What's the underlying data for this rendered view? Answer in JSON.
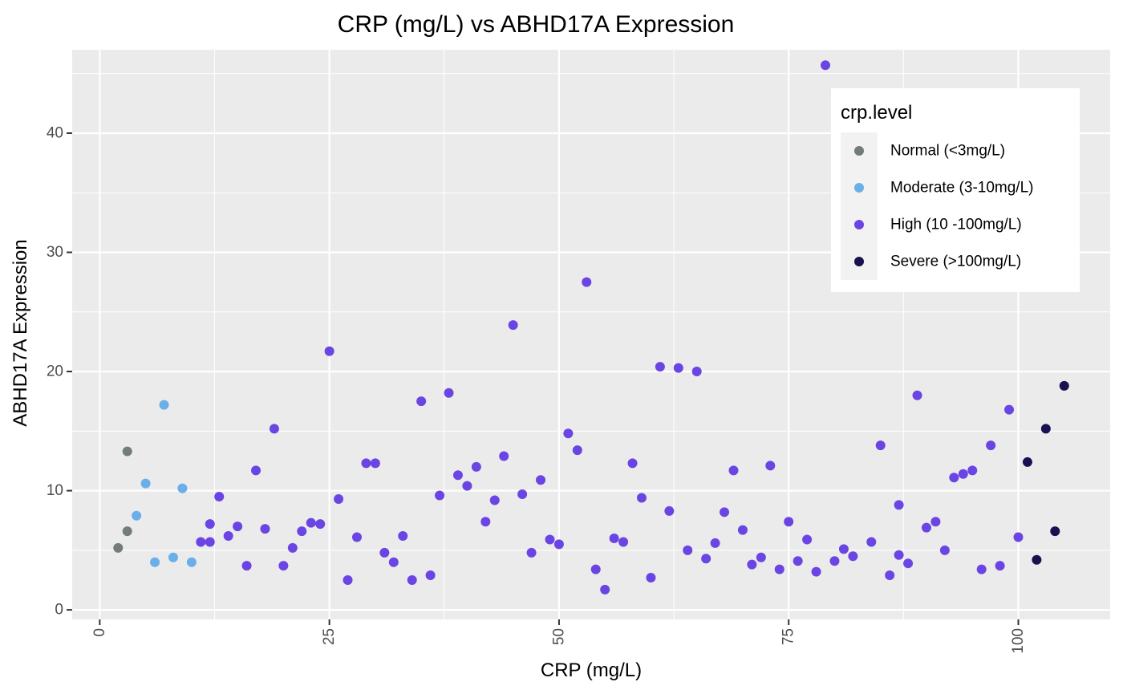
{
  "chart_data": {
    "type": "scatter",
    "title": "CRP (mg/L)  vs  ABHD17A  Expression",
    "xlabel": "CRP (mg/L)",
    "ylabel": "ABHD17A  Expression",
    "xlim": [
      -3,
      110
    ],
    "ylim": [
      -0.8,
      47
    ],
    "xticks": [
      0,
      25,
      50,
      75,
      100
    ],
    "xtick_labels": [
      "0",
      "25",
      "50",
      "75",
      "100"
    ],
    "yticks": [
      0,
      10,
      20,
      30,
      40
    ],
    "ytick_labels": [
      "0",
      "10",
      "20",
      "30",
      "40"
    ],
    "grid": true,
    "legend": {
      "title": "crp.level",
      "position": "top-right"
    },
    "series": [
      {
        "name": "Normal (<3mg/L)",
        "color": "#737b7b",
        "points": [
          [
            2,
            5.2
          ],
          [
            3,
            6.6
          ],
          [
            3,
            13.3
          ]
        ]
      },
      {
        "name": "Moderate (3-10mg/L)",
        "color": "#6aafe9",
        "points": [
          [
            4,
            7.9
          ],
          [
            5,
            10.6
          ],
          [
            6,
            4.0
          ],
          [
            7,
            17.2
          ],
          [
            8,
            4.4
          ],
          [
            9,
            10.2
          ],
          [
            10,
            4.0
          ]
        ]
      },
      {
        "name": "High (10 -100mg/L)",
        "color": "#6a45e4",
        "points": [
          [
            11,
            5.7
          ],
          [
            12,
            7.2
          ],
          [
            12,
            5.7
          ],
          [
            13,
            9.5
          ],
          [
            14,
            6.2
          ],
          [
            15,
            7.0
          ],
          [
            16,
            3.7
          ],
          [
            17,
            11.7
          ],
          [
            18,
            6.8
          ],
          [
            19,
            15.2
          ],
          [
            20,
            3.7
          ],
          [
            21,
            5.2
          ],
          [
            22,
            6.6
          ],
          [
            23,
            7.3
          ],
          [
            24,
            7.2
          ],
          [
            25,
            21.7
          ],
          [
            26,
            9.3
          ],
          [
            27,
            2.5
          ],
          [
            28,
            6.1
          ],
          [
            29,
            12.3
          ],
          [
            30,
            12.3
          ],
          [
            31,
            4.8
          ],
          [
            32,
            4.0
          ],
          [
            33,
            6.2
          ],
          [
            34,
            2.5
          ],
          [
            35,
            17.5
          ],
          [
            36,
            2.9
          ],
          [
            37,
            9.6
          ],
          [
            38,
            18.2
          ],
          [
            39,
            11.3
          ],
          [
            40,
            10.4
          ],
          [
            41,
            12.0
          ],
          [
            42,
            7.4
          ],
          [
            43,
            9.2
          ],
          [
            44,
            12.9
          ],
          [
            45,
            23.9
          ],
          [
            46,
            9.7
          ],
          [
            47,
            4.8
          ],
          [
            48,
            10.9
          ],
          [
            49,
            5.9
          ],
          [
            50,
            5.5
          ],
          [
            51,
            14.8
          ],
          [
            52,
            13.4
          ],
          [
            53,
            27.5
          ],
          [
            54,
            3.4
          ],
          [
            55,
            1.7
          ],
          [
            56,
            6.0
          ],
          [
            57,
            5.7
          ],
          [
            58,
            12.3
          ],
          [
            59,
            9.4
          ],
          [
            60,
            2.7
          ],
          [
            61,
            20.4
          ],
          [
            62,
            8.3
          ],
          [
            63,
            20.3
          ],
          [
            64,
            5.0
          ],
          [
            65,
            20.0
          ],
          [
            66,
            4.3
          ],
          [
            67,
            5.6
          ],
          [
            68,
            8.2
          ],
          [
            69,
            11.7
          ],
          [
            70,
            6.7
          ],
          [
            71,
            3.8
          ],
          [
            72,
            4.4
          ],
          [
            73,
            12.1
          ],
          [
            74,
            3.4
          ],
          [
            75,
            7.4
          ],
          [
            76,
            4.1
          ],
          [
            77,
            5.9
          ],
          [
            78,
            3.2
          ],
          [
            79,
            45.7
          ],
          [
            80,
            4.1
          ],
          [
            81,
            5.1
          ],
          [
            82,
            4.5
          ],
          [
            84,
            5.7
          ],
          [
            85,
            13.8
          ],
          [
            86,
            2.9
          ],
          [
            87,
            4.6
          ],
          [
            87,
            8.8
          ],
          [
            88,
            3.9
          ],
          [
            89,
            18.0
          ],
          [
            90,
            6.9
          ],
          [
            91,
            7.4
          ],
          [
            92,
            5.0
          ],
          [
            93,
            11.1
          ],
          [
            94,
            11.4
          ],
          [
            95,
            11.7
          ],
          [
            96,
            3.4
          ],
          [
            97,
            13.8
          ],
          [
            98,
            3.7
          ],
          [
            99,
            16.8
          ],
          [
            100,
            6.1
          ]
        ]
      },
      {
        "name": "Severe (>100mg/L)",
        "color": "#17124f",
        "points": [
          [
            101,
            12.4
          ],
          [
            102,
            4.2
          ],
          [
            103,
            15.2
          ],
          [
            104,
            6.6
          ],
          [
            105,
            18.8
          ]
        ]
      }
    ]
  }
}
